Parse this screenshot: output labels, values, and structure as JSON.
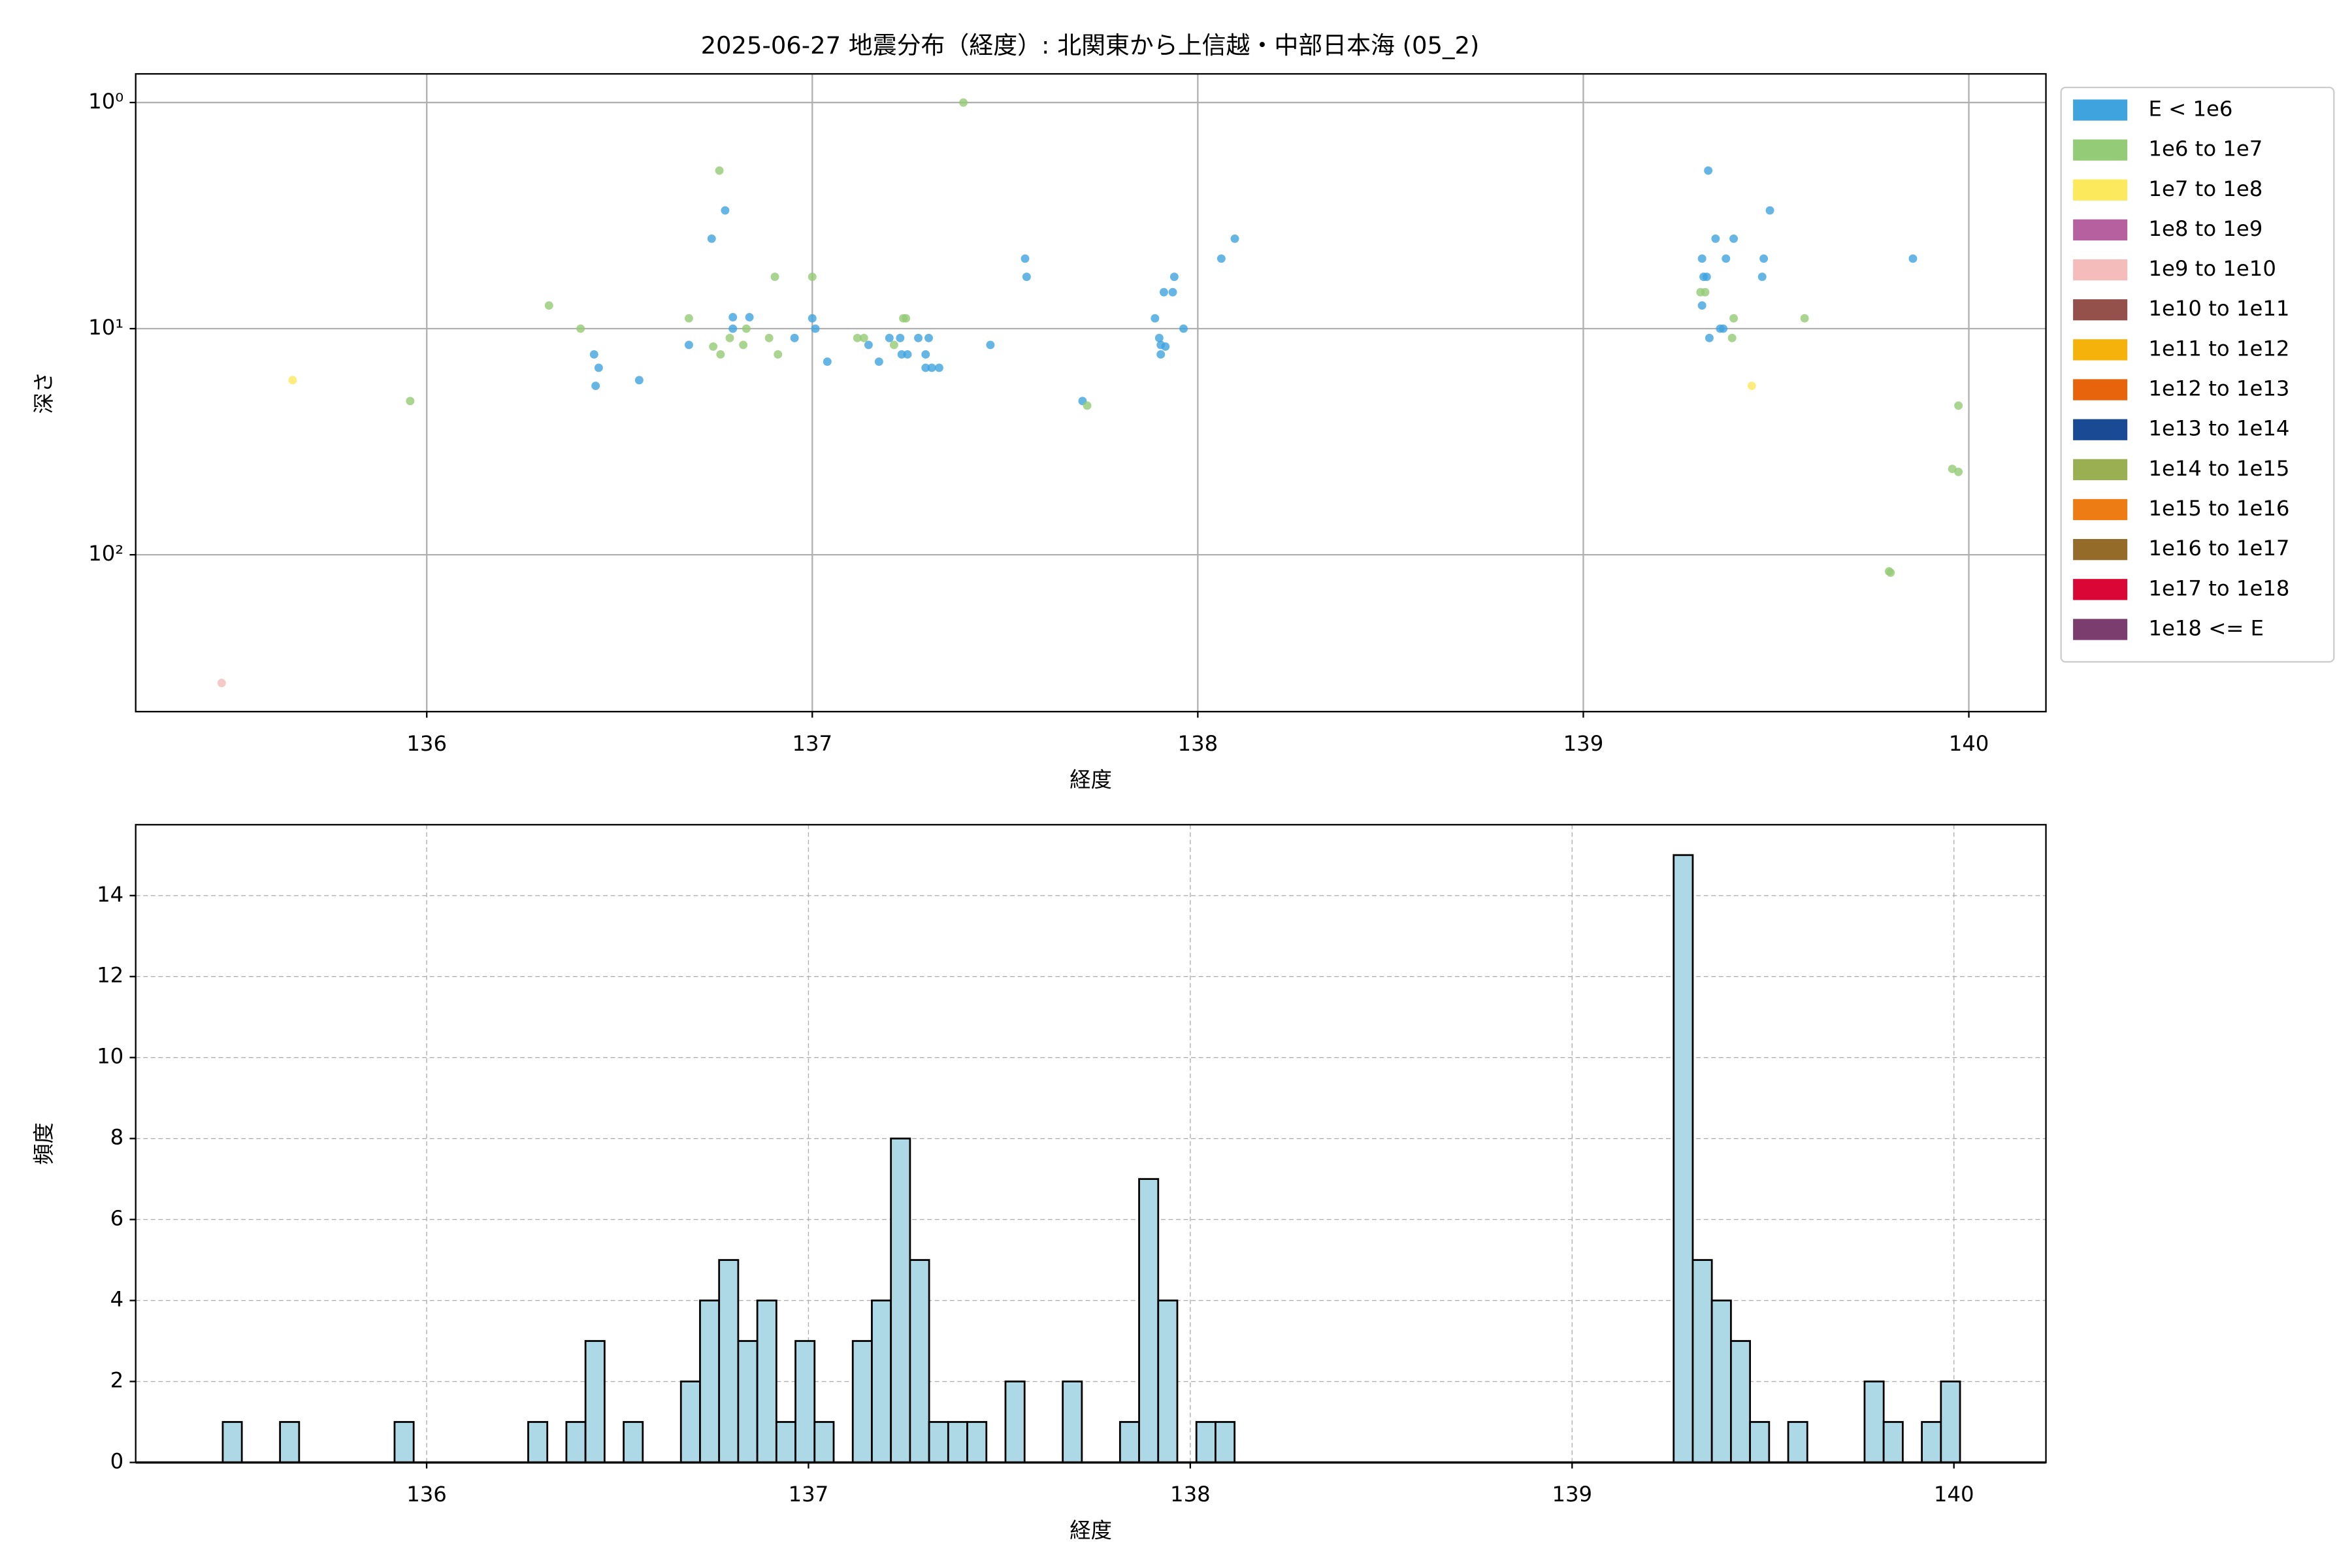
{
  "chart_data": [
    {
      "type": "scatter",
      "title": "2025-06-27 地震分布（経度）: 北関東から上信越・中部日本海 (05_2)",
      "xlabel": "経度",
      "ylabel": "深さ",
      "xlim": [
        135.245,
        140.2
      ],
      "xticks": [
        136,
        137,
        138,
        139,
        140
      ],
      "ylim": [
        494,
        0.747
      ],
      "yscale": "log",
      "yticks": [
        {
          "value": 1,
          "label": "10⁰"
        },
        {
          "value": 10,
          "label": "10¹"
        },
        {
          "value": 100,
          "label": "10²"
        }
      ],
      "grid": true,
      "grid_style": "solid",
      "legend": "right",
      "series": [
        {
          "name": "E < 1e6",
          "color": "#3fa4de",
          "x": [
            136.434,
            136.446,
            136.438,
            136.551,
            136.68,
            136.739,
            136.774,
            136.794,
            136.794,
            136.837,
            136.954,
            137.0,
            137.008,
            137.039,
            137.146,
            137.173,
            137.2,
            137.228,
            137.232,
            137.247,
            137.275,
            137.294,
            137.302,
            137.294,
            137.31,
            137.329,
            137.462,
            137.552,
            137.556,
            137.701,
            137.889,
            137.9,
            137.904,
            137.904,
            137.916,
            137.912,
            137.935,
            137.939,
            137.963,
            138.061,
            138.096,
            139.324,
            139.343,
            139.39,
            139.37,
            139.308,
            139.312,
            139.32,
            139.308,
            139.355,
            139.363,
            139.327,
            139.484,
            139.468,
            139.464,
            139.855
          ],
          "values": [
            13.0,
            14.9,
            17.9,
            16.9,
            11.8,
            4.0,
            3.0,
            8.9,
            10.0,
            8.9,
            11.0,
            9.0,
            10.0,
            14.0,
            11.8,
            14.0,
            11.0,
            11.0,
            13.0,
            13.0,
            11.0,
            13.0,
            11.0,
            14.9,
            14.9,
            14.9,
            11.8,
            4.9,
            5.9,
            20.9,
            9.0,
            11.0,
            11.8,
            13.0,
            12.0,
            6.9,
            6.9,
            5.9,
            10.0,
            4.9,
            4.0,
            2.0,
            4.0,
            4.0,
            4.9,
            4.9,
            5.9,
            5.9,
            7.9,
            10.0,
            10.0,
            11.0,
            3.0,
            4.9,
            5.9,
            4.9
          ]
        },
        {
          "name": "1e6 to 1e7",
          "color": "#93cb76",
          "x": [
            135.957,
            136.317,
            136.399,
            136.68,
            136.743,
            136.759,
            136.762,
            136.786,
            136.821,
            136.829,
            136.888,
            136.903,
            136.911,
            137.0,
            137.117,
            137.134,
            137.212,
            137.236,
            137.243,
            137.392,
            137.713,
            139.304,
            139.316,
            139.39,
            139.386,
            139.574,
            139.973,
            139.957,
            139.973,
            139.793,
            139.797
          ],
          "values": [
            20.9,
            7.9,
            10.0,
            9.0,
            12.0,
            2.0,
            13.0,
            11.0,
            11.8,
            10.0,
            11.0,
            5.9,
            13.0,
            5.9,
            11.0,
            11.0,
            11.8,
            9.0,
            9.0,
            1.0,
            21.9,
            6.9,
            6.9,
            9.0,
            11.0,
            9.0,
            21.9,
            41.7,
            43.0,
            118.4,
            120
          ]
        },
        {
          "name": "1e7 to 1e8",
          "color": "#fde95c",
          "x": [
            135.652,
            139.437
          ],
          "values": [
            16.9,
            17.9
          ]
        },
        {
          "name": "1e8 to 1e9",
          "color": "#b7609f",
          "x": [],
          "values": []
        },
        {
          "name": "1e9 to 1e10",
          "color": "#f4bcbb",
          "x": [
            135.468
          ],
          "values": [
            369
          ]
        },
        {
          "name": "1e10 to 1e11",
          "color": "#94504b",
          "x": [],
          "values": []
        },
        {
          "name": "1e11 to 1e12",
          "color": "#f5b20a",
          "x": [],
          "values": []
        },
        {
          "name": "1e12 to 1e13",
          "color": "#e8640c",
          "x": [],
          "values": []
        },
        {
          "name": "1e13 to 1e14",
          "color": "#1a4a93",
          "x": [],
          "values": []
        },
        {
          "name": "1e14 to 1e15",
          "color": "#9aae52",
          "x": [],
          "values": []
        },
        {
          "name": "1e15 to 1e16",
          "color": "#ee7c15",
          "x": [],
          "values": []
        },
        {
          "name": "1e16 to 1e17",
          "color": "#956b2a",
          "x": [],
          "values": []
        },
        {
          "name": "1e17 to 1e18",
          "color": "#da0636",
          "x": [],
          "values": []
        },
        {
          "name": "1e18 <= E",
          "color": "#7b3d6e",
          "x": [],
          "values": []
        }
      ]
    },
    {
      "type": "histogram",
      "xlabel": "経度",
      "ylabel": "頻度",
      "xlim": [
        135.238,
        140.241
      ],
      "xticks": [
        136,
        137,
        138,
        139,
        140
      ],
      "ylim": [
        0,
        15.75
      ],
      "yticks": [
        0,
        2,
        4,
        6,
        8,
        10,
        12,
        14
      ],
      "grid": true,
      "grid_style": "dashed",
      "color": "#add8e6",
      "edgecolor": "#000000",
      "bins": [
        135.466,
        135.516,
        135.566,
        135.616,
        135.666,
        135.716,
        135.766,
        135.816,
        135.866,
        135.916,
        135.966,
        136.016,
        136.066,
        136.116,
        136.166,
        136.216,
        136.266,
        136.316,
        136.366,
        136.416,
        136.466,
        136.516,
        136.566,
        136.616,
        136.666,
        136.716,
        136.766,
        136.816,
        136.866,
        136.916,
        136.966,
        137.016,
        137.066,
        137.116,
        137.166,
        137.216,
        137.266,
        137.316,
        137.366,
        137.416,
        137.466,
        137.516,
        137.566,
        137.616,
        137.666,
        137.716,
        137.766,
        137.816,
        137.866,
        137.916,
        137.966,
        138.016,
        138.066,
        138.116,
        138.166,
        138.216,
        138.266,
        138.316,
        138.366,
        138.416,
        138.466,
        138.516,
        138.566,
        138.616,
        138.666,
        138.716,
        138.766,
        138.816,
        138.866,
        138.916,
        138.966,
        139.016,
        139.066,
        139.116,
        139.166,
        139.216,
        139.266,
        139.316,
        139.366,
        139.416,
        139.466,
        139.516,
        139.566,
        139.616,
        139.666,
        139.716,
        139.766,
        139.816,
        139.866,
        139.916,
        139.966,
        140.016
      ],
      "values": [
        1,
        0,
        0,
        1,
        0,
        0,
        0,
        0,
        0,
        1,
        0,
        0,
        0,
        0,
        0,
        0,
        1,
        0,
        1,
        3,
        0,
        1,
        0,
        0,
        2,
        4,
        5,
        3,
        4,
        1,
        3,
        1,
        0,
        3,
        4,
        8,
        5,
        1,
        1,
        1,
        0,
        2,
        0,
        0,
        2,
        0,
        0,
        1,
        7,
        4,
        0,
        1,
        1,
        0,
        0,
        0,
        0,
        0,
        0,
        0,
        0,
        0,
        0,
        0,
        0,
        0,
        0,
        0,
        0,
        0,
        0,
        0,
        0,
        0,
        0,
        0,
        15,
        5,
        4,
        3,
        1,
        0,
        1,
        0,
        0,
        0,
        2,
        1,
        0,
        1,
        2
      ]
    }
  ]
}
